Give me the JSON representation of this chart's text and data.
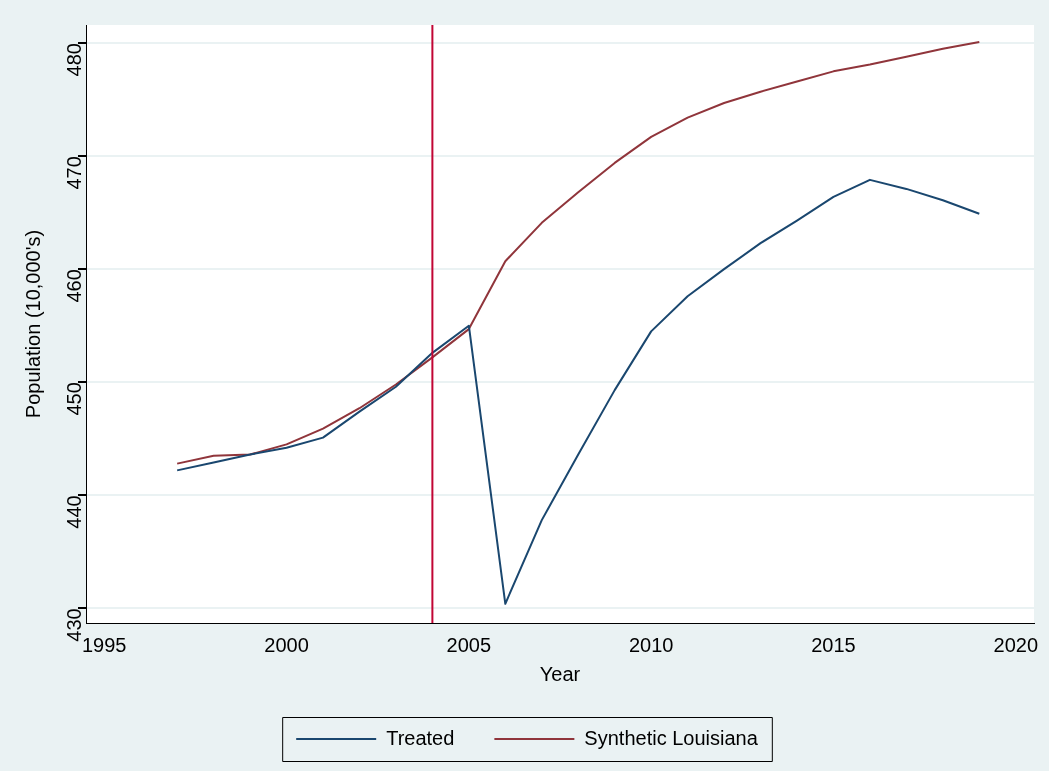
{
  "chart_data": {
    "type": "line",
    "xlabel": "Year",
    "ylabel": "Population (10,000's)",
    "x": [
      1997,
      1998,
      1999,
      2000,
      2001,
      2002,
      2003,
      2004,
      2005,
      2006,
      2007,
      2008,
      2009,
      2010,
      2011,
      2012,
      2013,
      2014,
      2015,
      2016,
      2017,
      2018,
      2019
    ],
    "series": [
      {
        "name": "Treated",
        "color": "#1a476f",
        "values": [
          442.2,
          442.9,
          443.6,
          444.2,
          445.1,
          447.4,
          449.6,
          452.6,
          455.0,
          430.4,
          437.8,
          443.6,
          449.3,
          454.5,
          457.6,
          460.0,
          462.3,
          464.3,
          466.4,
          467.9,
          467.1,
          466.1,
          464.9
        ]
      },
      {
        "name": "Synthetic Louisiana",
        "color": "#90353b",
        "values": [
          442.8,
          443.5,
          443.6,
          444.5,
          445.9,
          447.7,
          449.8,
          452.2,
          454.7,
          460.7,
          464.1,
          466.8,
          469.4,
          471.7,
          473.4,
          474.7,
          475.7,
          476.6,
          477.5,
          478.1,
          478.8,
          479.5,
          480.1
        ]
      }
    ],
    "xlim": [
      1994.5,
      2020.5
    ],
    "xticks": [
      1995,
      2000,
      2005,
      2010,
      2015,
      2020
    ],
    "ylim": [
      428.7,
      481.6
    ],
    "yticks": [
      430,
      440,
      450,
      460,
      470,
      480
    ],
    "ref_lines": [
      {
        "axis": "x",
        "value": 2004,
        "color": "#c10534"
      }
    ],
    "grid": "y",
    "legend": "bottom",
    "marker": "none",
    "line_style": "solid"
  }
}
